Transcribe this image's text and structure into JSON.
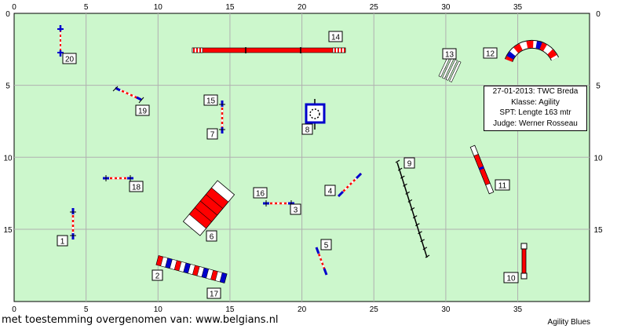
{
  "field": {
    "width_m": 40,
    "height_m": 20,
    "background": "#ccf7cc",
    "grid_color": "#b0b0b0",
    "x_ticks": [
      "0",
      "5",
      "10",
      "15",
      "20",
      "25",
      "30",
      "35"
    ],
    "y_ticks": [
      "0",
      "5",
      "10",
      "15"
    ]
  },
  "info": {
    "date_line": "27-01-2013: TWC Breda",
    "class_line": "Klasse: Agility",
    "spt_line": "SPT: Lengte 163 mtr",
    "judge_line": "Judge: Werner Rosseau"
  },
  "caption": "met toestemming overgenomen van: www.belgians.nl",
  "brand": "Agility Blues",
  "colors": {
    "red": "#ff0000",
    "blue": "#0000cc",
    "white": "#ffffff",
    "black": "#000000"
  },
  "obstacle_numbers": {
    "n1": "1",
    "n2": "2",
    "n3": "3",
    "n4": "4",
    "n5": "5",
    "n6": "6",
    "n7": "7",
    "n8": "8",
    "n9": "9",
    "n10": "10",
    "n11": "11",
    "n12": "12",
    "n13": "13",
    "n14": "14",
    "n15": "15",
    "n16": "16",
    "n17": "17",
    "n18": "18",
    "n19": "19",
    "n20": "20"
  },
  "obstacles": [
    {
      "label": "1",
      "type": "jump"
    },
    {
      "label": "2",
      "type": "tunnel"
    },
    {
      "label": "3",
      "type": "jump"
    },
    {
      "label": "4",
      "type": "jump"
    },
    {
      "label": "5",
      "type": "jump"
    },
    {
      "label": "6",
      "type": "table"
    },
    {
      "label": "7",
      "type": "jump"
    },
    {
      "label": "8",
      "type": "tyre"
    },
    {
      "label": "9",
      "type": "weave poles"
    },
    {
      "label": "10",
      "type": "jump"
    },
    {
      "label": "11",
      "type": "long jump"
    },
    {
      "label": "12",
      "type": "tunnel"
    },
    {
      "label": "13",
      "type": "long jump"
    },
    {
      "label": "14",
      "type": "dog walk"
    },
    {
      "label": "15",
      "type": "jump"
    },
    {
      "label": "16",
      "type": "jump"
    },
    {
      "label": "17",
      "type": "tunnel"
    },
    {
      "label": "18",
      "type": "jump"
    },
    {
      "label": "19",
      "type": "jump"
    },
    {
      "label": "20",
      "type": "jump"
    }
  ]
}
